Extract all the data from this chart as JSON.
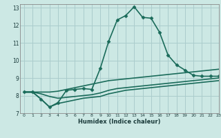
{
  "title": "",
  "xlabel": "Humidex (Indice chaleur)",
  "ylabel": "",
  "bg_color": "#cce8e4",
  "grid_color": "#aacccc",
  "line_color": "#1a6b5a",
  "xlim": [
    -0.5,
    23
  ],
  "ylim": [
    7,
    13.2
  ],
  "yticks": [
    7,
    8,
    9,
    10,
    11,
    12,
    13
  ],
  "xticks": [
    0,
    1,
    2,
    3,
    4,
    5,
    6,
    7,
    8,
    9,
    10,
    11,
    12,
    13,
    14,
    15,
    16,
    17,
    18,
    19,
    20,
    21,
    22,
    23
  ],
  "series": [
    {
      "x": [
        0,
        1,
        2,
        3,
        4,
        5,
        6,
        7,
        8,
        9,
        10,
        11,
        12,
        13,
        14,
        15,
        16,
        17,
        18,
        19,
        20,
        21,
        22,
        23
      ],
      "y": [
        8.2,
        8.2,
        8.2,
        8.2,
        8.25,
        8.35,
        8.45,
        8.55,
        8.65,
        8.75,
        8.85,
        8.9,
        8.95,
        9.0,
        9.05,
        9.1,
        9.15,
        9.2,
        9.25,
        9.3,
        9.35,
        9.4,
        9.45,
        9.5
      ],
      "marker": false,
      "linewidth": 1.2
    },
    {
      "x": [
        0,
        1,
        2,
        3,
        4,
        5,
        6,
        7,
        8,
        9,
        10,
        11,
        12,
        13,
        14,
        15,
        16,
        17,
        18,
        19,
        20,
        21,
        22,
        23
      ],
      "y": [
        8.2,
        8.2,
        8.1,
        7.95,
        7.85,
        7.9,
        7.95,
        8.0,
        8.05,
        8.15,
        8.3,
        8.4,
        8.45,
        8.5,
        8.55,
        8.6,
        8.65,
        8.7,
        8.75,
        8.8,
        8.85,
        8.9,
        8.95,
        9.0
      ],
      "marker": false,
      "linewidth": 1.2
    },
    {
      "x": [
        0,
        1,
        2,
        3,
        4,
        5,
        6,
        7,
        8,
        9,
        10,
        11,
        12,
        13,
        14,
        15,
        16,
        17,
        18,
        19,
        20,
        21,
        22,
        23
      ],
      "y": [
        8.2,
        8.2,
        7.8,
        7.35,
        7.55,
        7.65,
        7.75,
        7.85,
        7.9,
        7.95,
        8.1,
        8.2,
        8.3,
        8.35,
        8.4,
        8.45,
        8.5,
        8.55,
        8.6,
        8.65,
        8.7,
        8.75,
        8.8,
        8.85
      ],
      "marker": false,
      "linewidth": 1.2
    },
    {
      "x": [
        0,
        1,
        2,
        3,
        4,
        5,
        6,
        7,
        8,
        9,
        10,
        11,
        12,
        13,
        14,
        15,
        16,
        17,
        18,
        19,
        20,
        21,
        22,
        23
      ],
      "y": [
        8.2,
        8.2,
        7.8,
        7.35,
        7.6,
        8.3,
        8.35,
        8.4,
        8.35,
        9.55,
        11.1,
        12.3,
        12.55,
        13.05,
        12.45,
        12.4,
        11.6,
        10.3,
        9.75,
        9.45,
        9.15,
        9.1,
        9.1,
        9.1
      ],
      "marker": true,
      "linewidth": 1.2
    }
  ]
}
